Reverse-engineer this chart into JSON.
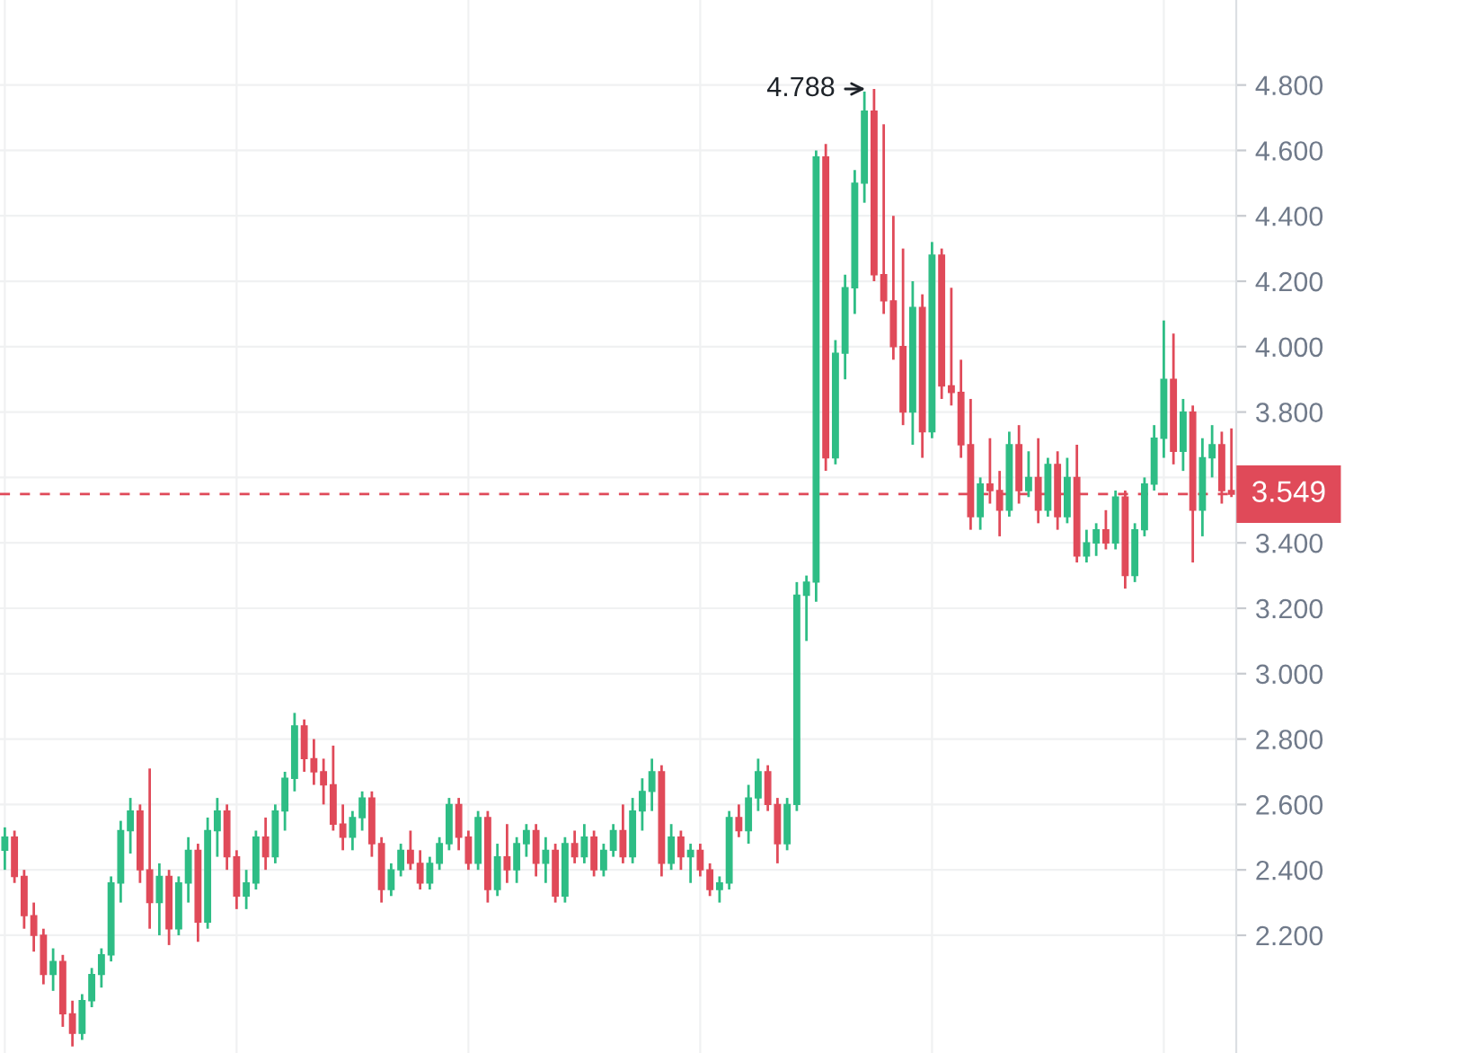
{
  "chart_data": {
    "type": "candlestick",
    "colors": [
      "#2ebd85",
      "#e04a59",
      "#e04a59",
      "#e04a59",
      "#e04a59",
      "#2ebd85",
      "#e04a59",
      "#e04a59",
      "#2ebd85",
      "#2ebd85",
      "#2ebd85",
      "#2ebd85",
      "#2ebd85",
      "#2ebd85",
      "#e04a59",
      "#e04a59",
      "#2ebd85",
      "#e04a59",
      "#2ebd85",
      "#2ebd85",
      "#e04a59",
      "#2ebd85",
      "#2ebd85",
      "#e04a59",
      "#e04a59",
      "#2ebd85",
      "#2ebd85",
      "#e04a59",
      "#2ebd85",
      "#2ebd85",
      "#2ebd85",
      "#e04a59",
      "#e04a59",
      "#e04a59",
      "#e04a59",
      "#e04a59",
      "#2ebd85",
      "#2ebd85",
      "#e04a59",
      "#e04a59",
      "#2ebd85",
      "#2ebd85",
      "#e04a59",
      "#e04a59",
      "#2ebd85",
      "#2ebd85",
      "#2ebd85",
      "#e04a59",
      "#e04a59",
      "#2ebd85",
      "#e04a59",
      "#2ebd85",
      "#e04a59",
      "#2ebd85",
      "#2ebd85",
      "#e04a59",
      "#2ebd85",
      "#e04a59",
      "#2ebd85",
      "#e04a59",
      "#2ebd85",
      "#e04a59",
      "#2ebd85",
      "#2ebd85",
      "#e04a59",
      "#2ebd85",
      "#2ebd85",
      "#2ebd85",
      "#e04a59",
      "#2ebd85",
      "#e04a59",
      "#2ebd85",
      "#e04a59",
      "#e04a59",
      "#2ebd85",
      "#2ebd85",
      "#e04a59",
      "#2ebd85",
      "#2ebd85",
      "#e04a59",
      "#e04a59",
      "#2ebd85",
      "#2ebd85",
      "#2ebd85",
      "#2ebd85",
      "#e04a59",
      "#2ebd85",
      "#2ebd85",
      "#2ebd85",
      "#2ebd85",
      "#e04a59",
      "#e04a59",
      "#e04a59",
      "#e04a59",
      "#2ebd85",
      "#e04a59",
      "#2ebd85",
      "#e04a59",
      "#e04a59",
      "#e04a59",
      "#e04a59",
      "#2ebd85",
      "#e04a59",
      "#e04a59",
      "#2ebd85",
      "#e04a59",
      "#2ebd85",
      "#e04a59",
      "#2ebd85",
      "#e04a59",
      "#2ebd85",
      "#e04a59",
      "#2ebd85",
      "#2ebd85",
      "#e04a59",
      "#2ebd85",
      "#e04a59",
      "#2ebd85",
      "#2ebd85",
      "#2ebd85",
      "#2ebd85",
      "#e04a59",
      "#2ebd85",
      "#e04a59",
      "#2ebd85",
      "#2ebd85",
      "#e04a59",
      "#e04a59"
    ],
    "ylim": [
      1.84,
      5.06
    ],
    "yticks": [
      {
        "value": 2.2,
        "label": "2.200"
      },
      {
        "value": 2.4,
        "label": "2.400"
      },
      {
        "value": 2.6,
        "label": "2.600"
      },
      {
        "value": 2.8,
        "label": "2.800"
      },
      {
        "value": 3.0,
        "label": "3.000"
      },
      {
        "value": 3.2,
        "label": "3.200"
      },
      {
        "value": 3.4,
        "label": "3.400"
      },
      {
        "value": 3.6,
        "label": null
      },
      {
        "value": 3.8,
        "label": "3.800"
      },
      {
        "value": 4.0,
        "label": "4.000"
      },
      {
        "value": 4.2,
        "label": "4.200"
      },
      {
        "value": 4.4,
        "label": "4.400"
      },
      {
        "value": 4.6,
        "label": "4.600"
      },
      {
        "value": 4.8,
        "label": "4.800"
      }
    ],
    "grid": true,
    "tick_labels": "y",
    "ref_lines": [
      {
        "axis": "y",
        "value": 3.549,
        "label": "3.549",
        "color": "#e04a59",
        "line_style": "dashed"
      }
    ],
    "annotations": [
      "4.788"
    ],
    "categories": [
      null,
      null,
      null,
      null,
      null,
      null,
      null,
      null,
      null,
      null,
      null,
      null,
      null,
      null,
      null,
      null,
      null,
      null,
      null,
      null,
      null,
      null,
      null,
      null,
      null,
      null,
      null,
      null,
      null,
      null,
      null,
      null,
      null,
      null,
      null,
      null,
      null,
      null,
      null,
      null,
      null,
      null,
      null,
      null,
      null,
      null,
      null,
      null,
      null,
      null,
      null,
      null,
      null,
      null,
      null,
      null,
      null,
      null,
      null,
      null,
      null,
      null,
      null,
      null,
      null,
      null,
      null,
      null,
      null,
      null,
      null,
      null,
      null,
      null,
      null,
      null,
      null,
      null,
      null,
      null,
      null,
      null,
      null,
      null,
      null,
      null,
      null,
      null,
      null,
      null,
      null,
      null,
      null,
      null,
      null,
      null,
      null,
      null,
      null,
      null,
      null,
      null,
      null,
      null,
      null,
      null,
      null,
      null,
      null,
      null,
      null,
      null,
      null,
      null,
      null,
      null,
      null,
      null,
      null,
      null,
      null,
      null,
      null,
      null,
      null,
      null,
      null,
      null
    ],
    "ohlc": [
      [
        2.46,
        2.53,
        2.4,
        2.5
      ],
      [
        2.5,
        2.52,
        2.36,
        2.38
      ],
      [
        2.38,
        2.4,
        2.22,
        2.26
      ],
      [
        2.26,
        2.3,
        2.15,
        2.2
      ],
      [
        2.2,
        2.22,
        2.05,
        2.08
      ],
      [
        2.08,
        2.16,
        2.03,
        2.12
      ],
      [
        2.12,
        2.14,
        1.92,
        1.96
      ],
      [
        1.96,
        2.0,
        1.86,
        1.9
      ],
      [
        1.9,
        2.02,
        1.88,
        2.0
      ],
      [
        2.0,
        2.1,
        1.98,
        2.08
      ],
      [
        2.08,
        2.16,
        2.04,
        2.14
      ],
      [
        2.14,
        2.38,
        2.12,
        2.36
      ],
      [
        2.36,
        2.55,
        2.3,
        2.52
      ],
      [
        2.52,
        2.62,
        2.45,
        2.58
      ],
      [
        2.58,
        2.6,
        2.36,
        2.4
      ],
      [
        2.4,
        2.71,
        2.22,
        2.3
      ],
      [
        2.3,
        2.42,
        2.2,
        2.38
      ],
      [
        2.38,
        2.4,
        2.17,
        2.22
      ],
      [
        2.22,
        2.38,
        2.2,
        2.36
      ],
      [
        2.36,
        2.5,
        2.3,
        2.46
      ],
      [
        2.46,
        2.48,
        2.18,
        2.24
      ],
      [
        2.24,
        2.56,
        2.22,
        2.52
      ],
      [
        2.52,
        2.62,
        2.44,
        2.58
      ],
      [
        2.58,
        2.6,
        2.4,
        2.44
      ],
      [
        2.44,
        2.46,
        2.28,
        2.32
      ],
      [
        2.32,
        2.4,
        2.28,
        2.36
      ],
      [
        2.36,
        2.52,
        2.34,
        2.5
      ],
      [
        2.5,
        2.56,
        2.4,
        2.44
      ],
      [
        2.44,
        2.6,
        2.42,
        2.58
      ],
      [
        2.58,
        2.7,
        2.52,
        2.68
      ],
      [
        2.68,
        2.88,
        2.64,
        2.84
      ],
      [
        2.84,
        2.86,
        2.7,
        2.74
      ],
      [
        2.74,
        2.8,
        2.66,
        2.7
      ],
      [
        2.7,
        2.74,
        2.6,
        2.66
      ],
      [
        2.66,
        2.78,
        2.52,
        2.54
      ],
      [
        2.54,
        2.6,
        2.46,
        2.5
      ],
      [
        2.5,
        2.58,
        2.46,
        2.56
      ],
      [
        2.56,
        2.64,
        2.52,
        2.62
      ],
      [
        2.62,
        2.64,
        2.44,
        2.48
      ],
      [
        2.48,
        2.5,
        2.3,
        2.34
      ],
      [
        2.34,
        2.42,
        2.32,
        2.4
      ],
      [
        2.4,
        2.48,
        2.38,
        2.46
      ],
      [
        2.46,
        2.52,
        2.4,
        2.42
      ],
      [
        2.42,
        2.46,
        2.34,
        2.36
      ],
      [
        2.36,
        2.44,
        2.34,
        2.42
      ],
      [
        2.42,
        2.5,
        2.4,
        2.48
      ],
      [
        2.48,
        2.62,
        2.46,
        2.6
      ],
      [
        2.6,
        2.62,
        2.46,
        2.5
      ],
      [
        2.5,
        2.52,
        2.4,
        2.42
      ],
      [
        2.42,
        2.58,
        2.4,
        2.56
      ],
      [
        2.56,
        2.58,
        2.3,
        2.34
      ],
      [
        2.34,
        2.48,
        2.32,
        2.44
      ],
      [
        2.44,
        2.54,
        2.36,
        2.4
      ],
      [
        2.4,
        2.5,
        2.36,
        2.48
      ],
      [
        2.48,
        2.54,
        2.44,
        2.52
      ],
      [
        2.52,
        2.54,
        2.38,
        2.42
      ],
      [
        2.42,
        2.5,
        2.36,
        2.46
      ],
      [
        2.46,
        2.48,
        2.3,
        2.32
      ],
      [
        2.32,
        2.5,
        2.3,
        2.48
      ],
      [
        2.48,
        2.52,
        2.42,
        2.44
      ],
      [
        2.44,
        2.54,
        2.42,
        2.5
      ],
      [
        2.5,
        2.52,
        2.38,
        2.4
      ],
      [
        2.4,
        2.48,
        2.38,
        2.46
      ],
      [
        2.46,
        2.54,
        2.44,
        2.52
      ],
      [
        2.52,
        2.6,
        2.42,
        2.44
      ],
      [
        2.44,
        2.62,
        2.42,
        2.58
      ],
      [
        2.58,
        2.68,
        2.52,
        2.64
      ],
      [
        2.64,
        2.74,
        2.58,
        2.7
      ],
      [
        2.7,
        2.72,
        2.38,
        2.42
      ],
      [
        2.42,
        2.54,
        2.4,
        2.5
      ],
      [
        2.5,
        2.52,
        2.4,
        2.44
      ],
      [
        2.44,
        2.48,
        2.36,
        2.46
      ],
      [
        2.46,
        2.48,
        2.38,
        2.4
      ],
      [
        2.4,
        2.42,
        2.32,
        2.34
      ],
      [
        2.34,
        2.38,
        2.3,
        2.36
      ],
      [
        2.36,
        2.58,
        2.34,
        2.56
      ],
      [
        2.56,
        2.6,
        2.5,
        2.52
      ],
      [
        2.52,
        2.66,
        2.48,
        2.62
      ],
      [
        2.62,
        2.74,
        2.58,
        2.7
      ],
      [
        2.7,
        2.72,
        2.58,
        2.6
      ],
      [
        2.6,
        2.62,
        2.42,
        2.48
      ],
      [
        2.48,
        2.62,
        2.46,
        2.6
      ],
      [
        2.6,
        3.28,
        2.58,
        3.24
      ],
      [
        3.24,
        3.3,
        3.1,
        3.28
      ],
      [
        3.28,
        4.6,
        3.22,
        4.58
      ],
      [
        4.58,
        4.62,
        3.62,
        3.66
      ],
      [
        3.66,
        4.02,
        3.64,
        3.98
      ],
      [
        3.98,
        4.22,
        3.9,
        4.18
      ],
      [
        4.18,
        4.54,
        4.1,
        4.5
      ],
      [
        4.5,
        4.78,
        4.44,
        4.72
      ],
      [
        4.72,
        4.788,
        4.2,
        4.22
      ],
      [
        4.22,
        4.68,
        4.1,
        4.14
      ],
      [
        4.14,
        4.4,
        3.96,
        4.0
      ],
      [
        4.0,
        4.3,
        3.76,
        3.8
      ],
      [
        3.8,
        4.2,
        3.7,
        4.12
      ],
      [
        4.12,
        4.16,
        3.66,
        3.74
      ],
      [
        3.74,
        4.32,
        3.72,
        4.28
      ],
      [
        4.28,
        4.3,
        3.84,
        3.88
      ],
      [
        3.88,
        4.18,
        3.82,
        3.86
      ],
      [
        3.86,
        3.96,
        3.66,
        3.7
      ],
      [
        3.7,
        3.84,
        3.44,
        3.48
      ],
      [
        3.48,
        3.6,
        3.44,
        3.58
      ],
      [
        3.58,
        3.72,
        3.52,
        3.56
      ],
      [
        3.56,
        3.62,
        3.42,
        3.5
      ],
      [
        3.5,
        3.74,
        3.48,
        3.7
      ],
      [
        3.7,
        3.76,
        3.52,
        3.56
      ],
      [
        3.56,
        3.68,
        3.54,
        3.6
      ],
      [
        3.6,
        3.72,
        3.46,
        3.5
      ],
      [
        3.5,
        3.66,
        3.48,
        3.64
      ],
      [
        3.64,
        3.68,
        3.44,
        3.48
      ],
      [
        3.48,
        3.66,
        3.46,
        3.6
      ],
      [
        3.6,
        3.7,
        3.34,
        3.36
      ],
      [
        3.36,
        3.44,
        3.34,
        3.4
      ],
      [
        3.4,
        3.46,
        3.36,
        3.44
      ],
      [
        3.44,
        3.5,
        3.38,
        3.4
      ],
      [
        3.4,
        3.56,
        3.38,
        3.54
      ],
      [
        3.54,
        3.56,
        3.26,
        3.3
      ],
      [
        3.3,
        3.46,
        3.28,
        3.44
      ],
      [
        3.44,
        3.6,
        3.42,
        3.58
      ],
      [
        3.58,
        3.76,
        3.56,
        3.72
      ],
      [
        3.72,
        4.08,
        3.66,
        3.9
      ],
      [
        3.9,
        4.04,
        3.64,
        3.68
      ],
      [
        3.68,
        3.84,
        3.62,
        3.8
      ],
      [
        3.8,
        3.82,
        3.34,
        3.5
      ],
      [
        3.5,
        3.72,
        3.42,
        3.66
      ],
      [
        3.66,
        3.76,
        3.6,
        3.7
      ],
      [
        3.7,
        3.74,
        3.52,
        3.56
      ],
      [
        3.56,
        3.75,
        3.54,
        3.549
      ]
    ]
  }
}
